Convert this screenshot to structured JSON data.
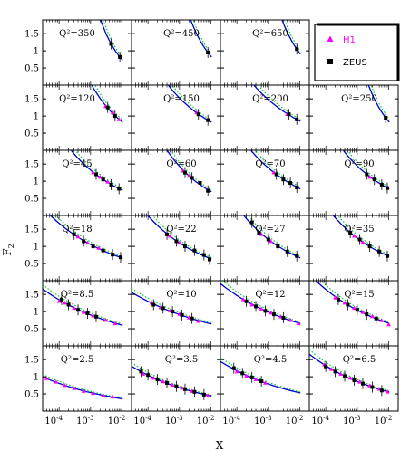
{
  "chart_data": {
    "type": "scatter",
    "title": "",
    "xlabel": "X",
    "ylabel": "F",
    "ylabel_sub": "2",
    "x_scale": "log",
    "xlim": [
      3e-05,
      0.02
    ],
    "ylim": [
      0,
      1.9
    ],
    "x_tick_labels": [
      "10",
      "10",
      "10"
    ],
    "x_tick_exponents": [
      "-4",
      "-3",
      "-2"
    ],
    "y_tick_labels": [
      "0.5",
      "1",
      "1.5"
    ],
    "y_ticks": [
      0.5,
      1.0,
      1.5
    ],
    "grid": false,
    "legend": {
      "placement": "top-right",
      "entries": [
        {
          "name": "H1",
          "color": "#ff00ff",
          "marker": "triangle"
        },
        {
          "name": "ZEUS",
          "color": "#000000",
          "marker": "square"
        }
      ]
    },
    "colors": {
      "fit_curve": "#0000cc",
      "dotted_curve": "#00cc44",
      "h1": "#ff00ff",
      "zeus": "#000000"
    },
    "panels": [
      {
        "q2": "Q²=350",
        "row": 0,
        "col": 0,
        "zeus": [
          [
            0.0045,
            1.2
          ],
          [
            0.0085,
            0.82
          ]
        ],
        "h1": []
      },
      {
        "q2": "Q²=450",
        "row": 0,
        "col": 1,
        "zeus": [
          [
            0.008,
            0.95
          ]
        ],
        "h1": []
      },
      {
        "q2": "Q²=650",
        "row": 0,
        "col": 2,
        "zeus": [
          [
            0.008,
            1.05
          ]
        ],
        "h1": []
      },
      {
        "q2": "Q²=120",
        "row": 1,
        "col": 0,
        "zeus": [
          [
            0.0035,
            1.25
          ],
          [
            0.006,
            1.0
          ]
        ],
        "h1": [
          [
            0.003,
            1.28
          ],
          [
            0.005,
            1.1
          ],
          [
            0.008,
            0.9
          ]
        ]
      },
      {
        "q2": "Q²=150",
        "row": 1,
        "col": 1,
        "zeus": [
          [
            0.004,
            1.05
          ],
          [
            0.008,
            0.88
          ]
        ],
        "h1": [
          [
            0.0035,
            1.1
          ]
        ]
      },
      {
        "q2": "Q²=200",
        "row": 1,
        "col": 2,
        "zeus": [
          [
            0.0045,
            1.05
          ],
          [
            0.008,
            0.9
          ]
        ],
        "h1": [
          [
            0.004,
            1.05
          ]
        ]
      },
      {
        "q2": "Q²=250",
        "row": 1,
        "col": 3,
        "zeus": [
          [
            0.008,
            0.95
          ]
        ],
        "h1": []
      },
      {
        "q2": "Q²=45",
        "row": 2,
        "col": 0,
        "zeus": [
          [
            0.0015,
            1.2
          ],
          [
            0.0025,
            1.05
          ],
          [
            0.0045,
            0.9
          ],
          [
            0.008,
            0.78
          ]
        ],
        "h1": [
          [
            0.0012,
            1.25
          ],
          [
            0.002,
            1.12
          ],
          [
            0.0035,
            0.98
          ]
        ]
      },
      {
        "q2": "Q²=60",
        "row": 2,
        "col": 1,
        "zeus": [
          [
            0.0015,
            1.25
          ],
          [
            0.0025,
            1.1
          ],
          [
            0.0045,
            0.95
          ],
          [
            0.008,
            0.72
          ]
        ],
        "h1": [
          [
            0.0013,
            1.3
          ],
          [
            0.002,
            1.15
          ]
        ]
      },
      {
        "q2": "Q²=70",
        "row": 2,
        "col": 2,
        "zeus": [
          [
            0.0018,
            1.2
          ],
          [
            0.003,
            1.05
          ],
          [
            0.005,
            0.95
          ],
          [
            0.008,
            0.82
          ]
        ],
        "h1": [
          [
            0.0015,
            1.25
          ]
        ]
      },
      {
        "q2": "Q²=90",
        "row": 2,
        "col": 3,
        "zeus": [
          [
            0.002,
            1.2
          ],
          [
            0.0035,
            1.05
          ],
          [
            0.006,
            0.9
          ],
          [
            0.009,
            0.8
          ]
        ],
        "h1": [
          [
            0.0025,
            1.12
          ]
        ]
      },
      {
        "q2": "Q²=18",
        "row": 3,
        "col": 0,
        "zeus": [
          [
            0.0003,
            1.35
          ],
          [
            0.0006,
            1.15
          ],
          [
            0.0012,
            1.0
          ],
          [
            0.0025,
            0.88
          ],
          [
            0.005,
            0.76
          ],
          [
            0.009,
            0.68
          ]
        ],
        "h1": [
          [
            0.0004,
            1.28
          ],
          [
            0.0008,
            1.1
          ],
          [
            0.0018,
            0.95
          ]
        ]
      },
      {
        "q2": "Q²=22",
        "row": 3,
        "col": 1,
        "zeus": [
          [
            0.0004,
            1.35
          ],
          [
            0.0008,
            1.15
          ],
          [
            0.0015,
            1.0
          ],
          [
            0.003,
            0.88
          ],
          [
            0.006,
            0.75
          ],
          [
            0.009,
            0.62
          ]
        ],
        "h1": [
          [
            0.0005,
            1.3
          ],
          [
            0.001,
            1.1
          ]
        ]
      },
      {
        "q2": "Q²=27",
        "row": 3,
        "col": 2,
        "zeus": [
          [
            0.0003,
            1.7
          ],
          [
            0.0005,
            1.4
          ],
          [
            0.001,
            1.2
          ],
          [
            0.002,
            1.0
          ],
          [
            0.004,
            0.85
          ],
          [
            0.008,
            0.72
          ]
        ],
        "h1": [
          [
            0.0006,
            1.35
          ],
          [
            0.0012,
            1.15
          ]
        ]
      },
      {
        "q2": "Q²=35",
        "row": 3,
        "col": 3,
        "zeus": [
          [
            0.0006,
            1.4
          ],
          [
            0.0012,
            1.2
          ],
          [
            0.0025,
            1.0
          ],
          [
            0.005,
            0.85
          ],
          [
            0.009,
            0.72
          ]
        ],
        "h1": [
          [
            0.0008,
            1.3
          ],
          [
            0.0015,
            1.12
          ]
        ]
      },
      {
        "q2": "Q²=8.5",
        "row": 4,
        "col": 0,
        "zeus": [
          [
            0.00012,
            1.35
          ],
          [
            0.0002,
            1.2
          ],
          [
            0.0004,
            1.05
          ],
          [
            0.0008,
            0.95
          ],
          [
            0.0015,
            0.85
          ]
        ],
        "h1": [
          [
            0.0001,
            1.3
          ],
          [
            0.00015,
            1.25
          ],
          [
            0.0003,
            1.1
          ],
          [
            0.0006,
            0.98
          ],
          [
            0.0012,
            0.88
          ],
          [
            0.003,
            0.75
          ],
          [
            0.006,
            0.65
          ]
        ]
      },
      {
        "q2": "Q²=10",
        "row": 4,
        "col": 1,
        "zeus": [
          [
            0.00015,
            1.2
          ],
          [
            0.0003,
            1.1
          ],
          [
            0.0006,
            1.0
          ],
          [
            0.0012,
            0.9
          ],
          [
            0.0025,
            0.8
          ]
        ],
        "h1": [
          [
            0.00013,
            1.25
          ],
          [
            0.00025,
            1.12
          ],
          [
            0.0005,
            1.02
          ],
          [
            0.001,
            0.92
          ],
          [
            0.002,
            0.82
          ],
          [
            0.004,
            0.72
          ]
        ]
      },
      {
        "q2": "Q²=12",
        "row": 4,
        "col": 2,
        "zeus": [
          [
            0.0002,
            1.3
          ],
          [
            0.0004,
            1.15
          ],
          [
            0.0008,
            1.02
          ],
          [
            0.0015,
            0.92
          ],
          [
            0.003,
            0.82
          ]
        ],
        "h1": [
          [
            0.00016,
            1.35
          ],
          [
            0.0003,
            1.2
          ],
          [
            0.0006,
            1.08
          ],
          [
            0.0012,
            0.96
          ],
          [
            0.0025,
            0.85
          ],
          [
            0.005,
            0.75
          ],
          [
            0.009,
            0.65
          ]
        ]
      },
      {
        "q2": "Q²=15",
        "row": 4,
        "col": 3,
        "zeus": [
          [
            0.00025,
            1.35
          ],
          [
            0.0005,
            1.2
          ],
          [
            0.001,
            1.05
          ],
          [
            0.002,
            0.92
          ],
          [
            0.004,
            0.8
          ]
        ],
        "h1": [
          [
            0.0002,
            1.4
          ],
          [
            0.0004,
            1.25
          ],
          [
            0.0008,
            1.1
          ],
          [
            0.0015,
            0.98
          ],
          [
            0.003,
            0.86
          ],
          [
            0.006,
            0.74
          ],
          [
            0.01,
            0.62
          ]
        ]
      },
      {
        "q2": "Q²=2.5",
        "row": 5,
        "col": 0,
        "zeus": [],
        "h1": [
          [
            4e-05,
            0.95
          ],
          [
            8e-05,
            0.85
          ],
          [
            0.00015,
            0.75
          ],
          [
            0.0003,
            0.66
          ],
          [
            0.0006,
            0.58
          ],
          [
            0.0012,
            0.52
          ],
          [
            0.0025,
            0.46
          ],
          [
            0.005,
            0.41
          ]
        ]
      },
      {
        "q2": "Q²=3.5",
        "row": 5,
        "col": 1,
        "zeus": [
          [
            6e-05,
            1.15
          ],
          [
            0.0001,
            1.05
          ],
          [
            0.0002,
            0.92
          ],
          [
            0.0004,
            0.82
          ],
          [
            0.0008,
            0.72
          ],
          [
            0.0015,
            0.64
          ],
          [
            0.003,
            0.56
          ],
          [
            0.006,
            0.48
          ]
        ],
        "h1": [
          [
            7e-05,
            1.08
          ],
          [
            0.00015,
            0.96
          ],
          [
            0.0003,
            0.86
          ],
          [
            0.0006,
            0.76
          ],
          [
            0.0012,
            0.67
          ],
          [
            0.0025,
            0.58
          ],
          [
            0.008,
            0.45
          ]
        ]
      },
      {
        "q2": "Q²=4.5",
        "row": 5,
        "col": 2,
        "zeus": [
          [
            8e-05,
            1.25
          ],
          [
            0.00015,
            1.1
          ],
          [
            0.0003,
            0.98
          ],
          [
            0.0006,
            0.87
          ]
        ],
        "h1": [
          [
            0.0001,
            1.15
          ],
          [
            0.0002,
            1.02
          ],
          [
            0.0004,
            0.92
          ],
          [
            0.0008,
            0.82
          ]
        ]
      },
      {
        "q2": "Q²=6.5",
        "row": 5,
        "col": 3,
        "zeus": [
          [
            0.0001,
            1.3
          ],
          [
            0.0002,
            1.15
          ],
          [
            0.0004,
            1.02
          ],
          [
            0.0008,
            0.9
          ],
          [
            0.0015,
            0.8
          ],
          [
            0.003,
            0.7
          ],
          [
            0.006,
            0.6
          ]
        ],
        "h1": [
          [
            9e-05,
            1.35
          ],
          [
            0.00015,
            1.22
          ],
          [
            0.0003,
            1.08
          ],
          [
            0.0006,
            0.96
          ],
          [
            0.0012,
            0.85
          ],
          [
            0.0025,
            0.74
          ],
          [
            0.005,
            0.64
          ],
          [
            0.009,
            0.56
          ]
        ]
      }
    ]
  }
}
